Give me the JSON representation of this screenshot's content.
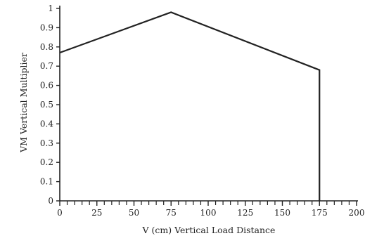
{
  "chart_data": {
    "type": "line",
    "title": "",
    "xlabel": "V (cm) Vertical Load Distance",
    "ylabel": "VM Vertical Multiplier",
    "xlim": [
      0,
      200
    ],
    "ylim": [
      0,
      1
    ],
    "x_ticks": [
      0,
      25,
      50,
      75,
      100,
      125,
      150,
      175,
      200
    ],
    "x_tick_labels": [
      "0",
      "25",
      "50",
      "75",
      "100",
      "125",
      "150",
      "175",
      "200"
    ],
    "x_minor_step": 5,
    "y_ticks": [
      0,
      0.1,
      0.2,
      0.3,
      0.4,
      0.5,
      0.6,
      0.7,
      0.8,
      0.9,
      1
    ],
    "y_tick_labels": [
      "0",
      "0.1",
      "0.2",
      "0.3",
      "0.4",
      "0.5",
      "0.6",
      "0.7",
      "0.8",
      "0.9",
      "1"
    ],
    "grid": false,
    "line_color": "#222222",
    "series": [
      {
        "x": [
          0,
          75,
          175,
          175
        ],
        "y": [
          0.77,
          0.98,
          0.68,
          0
        ]
      }
    ]
  }
}
